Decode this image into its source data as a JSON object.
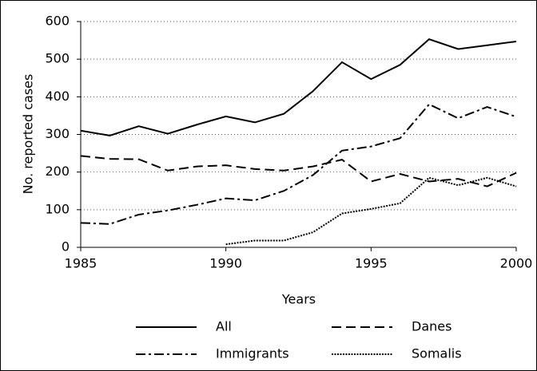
{
  "chart_data": {
    "type": "line",
    "x_label": "Years",
    "y_label": "No. reported cases",
    "x": [
      1985,
      1986,
      1987,
      1988,
      1989,
      1990,
      1991,
      1992,
      1993,
      1994,
      1995,
      1996,
      1997,
      1998,
      1999,
      2000
    ],
    "xlim": [
      1985,
      2000
    ],
    "xticks": [
      1985,
      1990,
      1995,
      2000
    ],
    "ylim": [
      0,
      600
    ],
    "yticks": [
      0,
      100,
      200,
      300,
      400,
      500,
      600
    ],
    "grid": true,
    "legend": "bottom",
    "series": [
      {
        "name": "All",
        "color": "#000000",
        "dash": "solid",
        "values": [
          310,
          297,
          322,
          302,
          326,
          348,
          332,
          355,
          415,
          492,
          447,
          485,
          553,
          527,
          537,
          547
        ]
      },
      {
        "name": "Danes",
        "color": "#000000",
        "dash": "dashed",
        "values": [
          243,
          235,
          234,
          204,
          215,
          218,
          208,
          204,
          215,
          233,
          175,
          195,
          175,
          182,
          162,
          198
        ]
      },
      {
        "name": "Immigrants",
        "color": "#000000",
        "dash": "dashdot",
        "values": [
          65,
          62,
          87,
          98,
          113,
          130,
          125,
          150,
          192,
          257,
          268,
          290,
          380,
          343,
          373,
          347
        ]
      },
      {
        "name": "Somalis",
        "color": "#000000",
        "dash": "dotted",
        "values": [
          null,
          null,
          null,
          null,
          null,
          8,
          18,
          18,
          40,
          90,
          102,
          117,
          185,
          165,
          185,
          162
        ]
      }
    ]
  }
}
